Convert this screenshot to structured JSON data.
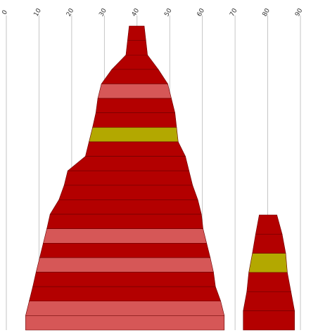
{
  "chart_data": {
    "type": "bar",
    "orientation": "stacked-tiers",
    "x_axis": {
      "position": "top",
      "range": [
        0,
        90
      ],
      "ticks": [
        0,
        10,
        20,
        30,
        40,
        50,
        60,
        70,
        80,
        90
      ],
      "tick_labels": [
        "0",
        "10",
        "20",
        "30",
        "40",
        "50",
        "60",
        "70",
        "80",
        "90"
      ],
      "grid": true
    },
    "colors": {
      "dark": "#b30000",
      "light": "#d65757",
      "highlight": "#b3a800",
      "divider": "#6b0000"
    },
    "groups": [
      {
        "rows": [
          {
            "left": 37.6,
            "right": 42.2,
            "style": "dark"
          },
          {
            "left": 37.1,
            "right": 42.7,
            "style": "dark"
          },
          {
            "left": 36.6,
            "right": 43.2,
            "style": "dark"
          },
          {
            "left": 32.3,
            "right": 46.5,
            "style": "dark"
          },
          {
            "left": 29.1,
            "right": 49.4,
            "style": "light"
          },
          {
            "left": 28.0,
            "right": 50.5,
            "style": "dark"
          },
          {
            "left": 27.4,
            "right": 51.6,
            "style": "dark"
          },
          {
            "left": 26.4,
            "right": 52.1,
            "style": "highlight"
          },
          {
            "left": 25.3,
            "right": 52.6,
            "style": "dark"
          },
          {
            "left": 24.2,
            "right": 54.8,
            "style": "dark"
          },
          {
            "left": 18.8,
            "right": 55.9,
            "style": "dark"
          },
          {
            "left": 17.7,
            "right": 57.0,
            "style": "dark"
          },
          {
            "left": 16.1,
            "right": 58.6,
            "style": "dark"
          },
          {
            "left": 13.4,
            "right": 59.7,
            "style": "dark"
          },
          {
            "left": 12.4,
            "right": 60.2,
            "style": "light"
          },
          {
            "left": 11.3,
            "right": 61.3,
            "style": "dark"
          },
          {
            "left": 10.2,
            "right": 62.4,
            "style": "light"
          },
          {
            "left": 9.1,
            "right": 63.4,
            "style": "dark"
          },
          {
            "left": 8.1,
            "right": 64.0,
            "style": "dark"
          },
          {
            "left": 7.0,
            "right": 65.6,
            "style": "light"
          },
          {
            "left": 5.9,
            "right": 66.7,
            "style": "light"
          }
        ]
      },
      {
        "rows": [
          {
            "left": 77.4,
            "right": 82.8,
            "style": "dark"
          },
          {
            "left": 76.3,
            "right": 84.4,
            "style": "dark"
          },
          {
            "left": 75.3,
            "right": 85.5,
            "style": "highlight"
          },
          {
            "left": 74.2,
            "right": 86.0,
            "style": "dark"
          },
          {
            "left": 73.6,
            "right": 87.1,
            "style": "dark"
          },
          {
            "left": 72.5,
            "right": 88.2,
            "style": "dark"
          }
        ]
      }
    ]
  }
}
